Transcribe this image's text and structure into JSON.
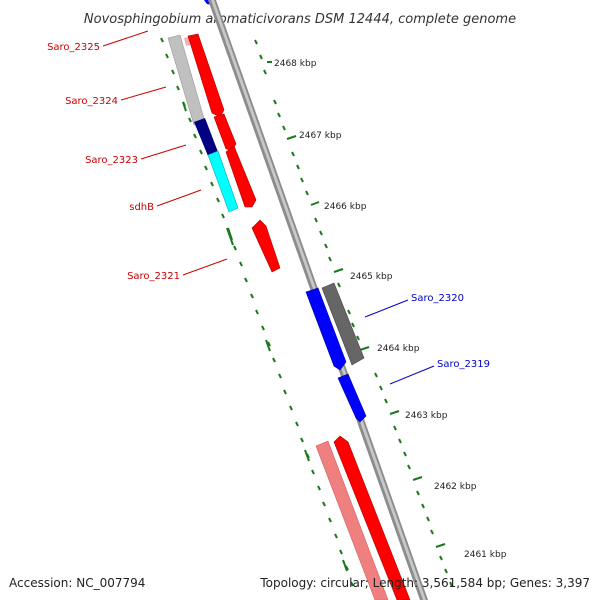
{
  "title": "Novosphingobium aromaticivorans DSM 12444, complete genome",
  "footer": {
    "accession": "Accession: NC_007794",
    "summary": "Topology: circular; Length: 3,561,584 bp; Genes: 3,397"
  },
  "colors": {
    "forward_strand_label": "#cc0000",
    "reverse_strand_label": "#0000cc",
    "backbone": "#9a9a9a",
    "tick": "#1a7a1a",
    "red_gene": "#ff0000",
    "pink_gene": "#f08080",
    "blue_gene": "#0000ff",
    "navy_gene": "#000080",
    "cyan_gene": "#00ffff",
    "gray_gene": "#bbbbbb",
    "dark_gray_gene": "#666666"
  },
  "scale_labels": [
    "2468 kbp",
    "2467 kbp",
    "2466 kbp",
    "2465 kbp",
    "2464 kbp",
    "2463 kbp",
    "2462 kbp",
    "2461 kbp"
  ],
  "gene_labels": [
    {
      "name": "Saro_2325",
      "strand": "forward"
    },
    {
      "name": "Saro_2324",
      "strand": "forward"
    },
    {
      "name": "Saro_2323",
      "strand": "forward"
    },
    {
      "name": "sdhB",
      "strand": "forward"
    },
    {
      "name": "Saro_2321",
      "strand": "forward"
    },
    {
      "name": "Saro_2320",
      "strand": "reverse"
    },
    {
      "name": "Saro_2319",
      "strand": "reverse"
    }
  ]
}
